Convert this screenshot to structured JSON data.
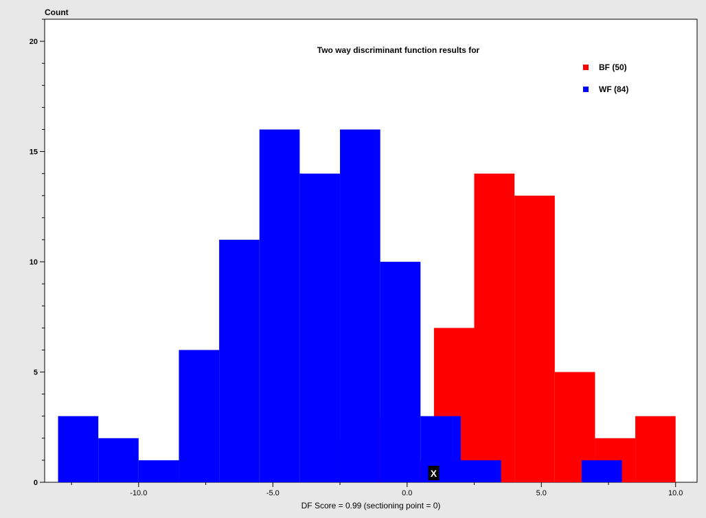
{
  "chart_data": {
    "type": "bar",
    "title": "Two way discriminant function results for",
    "ylabel": "Count",
    "xlabel": "DF Score = 0.99 (sectioning point = 0)",
    "xlim": [
      -13.5,
      10.8
    ],
    "ylim": [
      0,
      21
    ],
    "x_ticks": [
      -10.0,
      -5.0,
      0.0,
      5.0,
      10.0
    ],
    "x_tick_labels": [
      "-10.0",
      "-5.0",
      "0.0",
      "5.0",
      "10.0"
    ],
    "y_ticks": [
      0,
      5,
      10,
      15,
      20
    ],
    "y_tick_labels": [
      "0",
      "5",
      "10",
      "15",
      "20"
    ],
    "bin_width": 1.5,
    "legend_position": "top-right",
    "grid": false,
    "series": [
      {
        "name": "BF (50)",
        "color": "#ff0000",
        "points": [
          {
            "x": -2.75,
            "y": 2
          },
          {
            "x": -1.25,
            "y": 3
          },
          {
            "x": 0.25,
            "y": 1
          },
          {
            "x": 1.75,
            "y": 7
          },
          {
            "x": 3.25,
            "y": 14
          },
          {
            "x": 4.75,
            "y": 13
          },
          {
            "x": 6.25,
            "y": 5
          },
          {
            "x": 7.75,
            "y": 2
          },
          {
            "x": 9.25,
            "y": 3
          }
        ]
      },
      {
        "name": "WF (84)",
        "color": "#0000ff",
        "points": [
          {
            "x": -12.25,
            "y": 3
          },
          {
            "x": -10.75,
            "y": 2
          },
          {
            "x": -9.25,
            "y": 1
          },
          {
            "x": -7.75,
            "y": 6
          },
          {
            "x": -6.25,
            "y": 11
          },
          {
            "x": -4.75,
            "y": 16
          },
          {
            "x": -3.25,
            "y": 14
          },
          {
            "x": -1.75,
            "y": 16
          },
          {
            "x": -0.25,
            "y": 10
          },
          {
            "x": 1.25,
            "y": 3
          },
          {
            "x": 2.75,
            "y": 1
          },
          {
            "x": 7.25,
            "y": 1
          }
        ]
      }
    ],
    "marker": {
      "x": 0.99,
      "label": "X"
    }
  }
}
